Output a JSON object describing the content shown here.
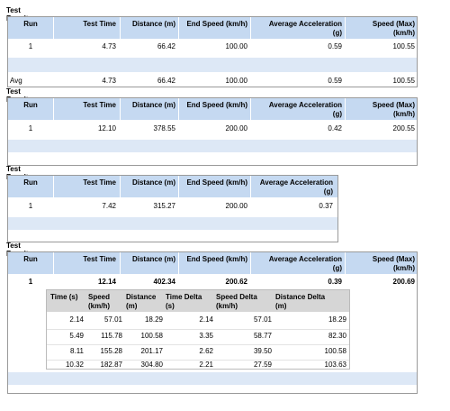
{
  "section_title": "Test Result",
  "headers": {
    "run": "Run",
    "test_time": "Test Time",
    "distance": "Distance (m)",
    "end_speed": "End Speed (km/h)",
    "avg_accel_1": "Average Acceleration",
    "avg_accel_2": "(g)",
    "speed_max_1": "Speed (Max)",
    "speed_max_2": "(km/h)"
  },
  "t1": {
    "row": [
      "1",
      "4.73",
      "66.42",
      "100.00",
      "0.59",
      "100.55"
    ],
    "avg": [
      "Avg",
      "4.73",
      "66.42",
      "100.00",
      "0.59",
      "100.55"
    ]
  },
  "t2": {
    "row": [
      "1",
      "12.10",
      "378.55",
      "200.00",
      "0.42",
      "200.55"
    ]
  },
  "t3": {
    "row": [
      "1",
      "7.42",
      "315.27",
      "200.00",
      "0.37"
    ]
  },
  "t4": {
    "row": [
      "1",
      "12.14",
      "402.34",
      "200.62",
      "0.39",
      "200.69"
    ],
    "sub_headers": {
      "time": "Time (s)",
      "speed_1": "Speed",
      "speed_2": "(km/h)",
      "distance_1": "Distance",
      "distance_2": "(m)",
      "time_delta_1": "Time Delta",
      "time_delta_2": "(s)",
      "speed_delta_1": "Speed Delta",
      "speed_delta_2": "(km/h)",
      "distance_delta_1": "Distance Delta",
      "distance_delta_2": "(m)"
    },
    "sub_rows": [
      [
        "2.14",
        "57.01",
        "18.29",
        "2.14",
        "57.01",
        "18.29"
      ],
      [
        "5.49",
        "115.78",
        "100.58",
        "3.35",
        "58.77",
        "82.30"
      ],
      [
        "8.11",
        "155.28",
        "201.17",
        "2.62",
        "39.50",
        "100.58"
      ],
      [
        "10.32",
        "182.87",
        "304.80",
        "2.21",
        "27.59",
        "103.63"
      ]
    ]
  }
}
